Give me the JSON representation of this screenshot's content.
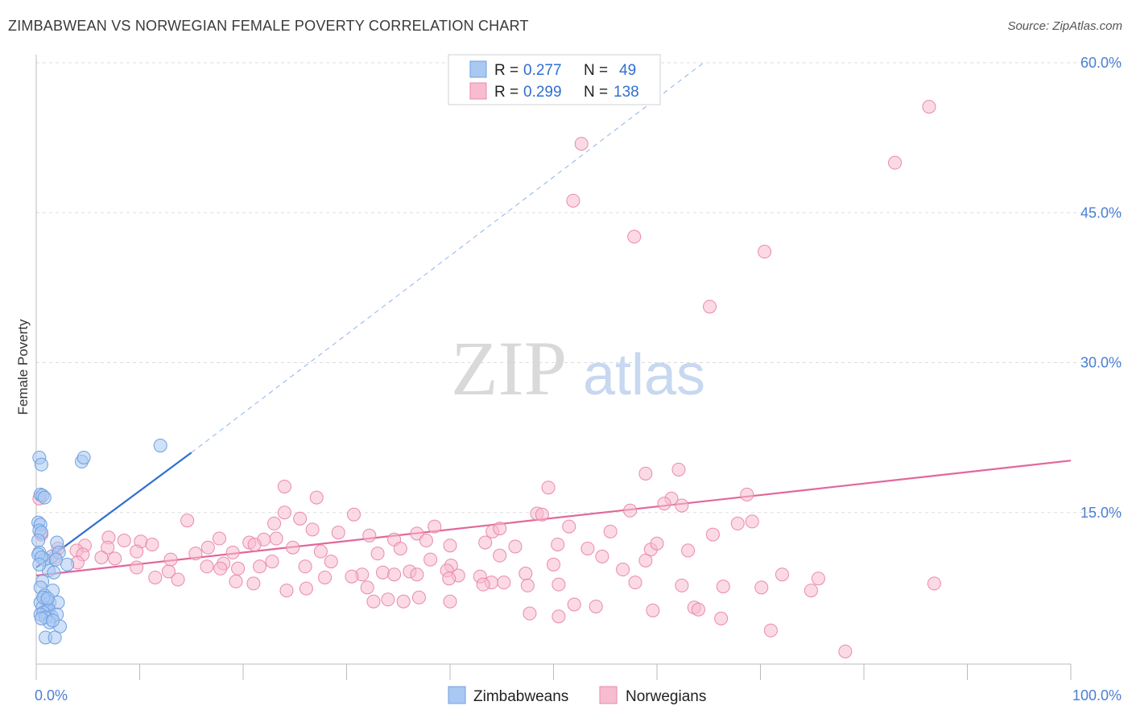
{
  "header": {
    "title": "ZIMBABWEAN VS NORWEGIAN FEMALE POVERTY CORRELATION CHART",
    "source": "Source: ZipAtlas.com"
  },
  "watermark": {
    "zip": "ZIP",
    "atlas": "atlas"
  },
  "legend": {
    "rows": [
      {
        "r_label": "R =",
        "r_value": "0.277",
        "n_label": "N =",
        "n_value": "49"
      },
      {
        "r_label": "R =",
        "r_value": "0.299",
        "n_label": "N =",
        "n_value": "138"
      }
    ]
  },
  "bottom_legend": {
    "items": [
      "Zimbabweans",
      "Norwegians"
    ]
  },
  "colors": {
    "blue_fill": "#a9c8f2",
    "blue_stroke": "#6f9fe0",
    "blue_line": "#2e6fd3",
    "pink_fill": "#f7bcd0",
    "pink_stroke": "#e98aab",
    "pink_line": "#e2679a",
    "tick_text": "#4a7fd4",
    "grid": "#dddddd"
  },
  "chart_data": {
    "type": "scatter",
    "title": "ZIMBABWEAN VS NORWEGIAN FEMALE POVERTY CORRELATION CHART",
    "xlabel": "",
    "ylabel": "Female Poverty",
    "xlim": [
      0,
      100
    ],
    "ylim": [
      0,
      60
    ],
    "x_tick_labels": [
      "0.0%",
      "100.0%"
    ],
    "y_ticks": [
      15,
      30,
      45,
      60
    ],
    "y_tick_labels": [
      "15.0%",
      "30.0%",
      "45.0%",
      "60.0%"
    ],
    "grid": true,
    "legend_position": "top-center",
    "series": [
      {
        "name": "Zimbabweans",
        "r": 0.277,
        "n": 49,
        "trend": {
          "x": [
            0,
            15
          ],
          "y": [
            9.5,
            21.0
          ],
          "dashed_to": [
            64.5,
            60.0
          ]
        },
        "points": [
          [
            0.3,
            20.5
          ],
          [
            0.5,
            19.8
          ],
          [
            4.4,
            20.1
          ],
          [
            4.6,
            20.5
          ],
          [
            12.0,
            21.7
          ],
          [
            0.4,
            16.8
          ],
          [
            0.6,
            16.7
          ],
          [
            0.8,
            16.5
          ],
          [
            0.2,
            14.0
          ],
          [
            0.4,
            13.8
          ],
          [
            0.3,
            13.2
          ],
          [
            0.5,
            13.0
          ],
          [
            0.2,
            12.2
          ],
          [
            2.0,
            12.0
          ],
          [
            0.3,
            11.0
          ],
          [
            1.5,
            10.6
          ],
          [
            2.2,
            11.0
          ],
          [
            0.8,
            10.3
          ],
          [
            3.0,
            9.8
          ],
          [
            1.2,
            9.2
          ],
          [
            1.7,
            9.0
          ],
          [
            0.6,
            8.1
          ],
          [
            1.6,
            7.2
          ],
          [
            0.4,
            7.5
          ],
          [
            0.8,
            6.7
          ],
          [
            1.0,
            6.2
          ],
          [
            0.4,
            6.0
          ],
          [
            1.3,
            6.0
          ],
          [
            2.1,
            6.0
          ],
          [
            0.6,
            5.5
          ],
          [
            1.0,
            5.1
          ],
          [
            1.2,
            5.3
          ],
          [
            0.7,
            5.0
          ],
          [
            0.4,
            4.8
          ],
          [
            1.5,
            4.6
          ],
          [
            2.0,
            4.8
          ],
          [
            0.9,
            4.5
          ],
          [
            1.3,
            4.0
          ],
          [
            2.3,
            3.6
          ],
          [
            0.9,
            2.5
          ],
          [
            1.8,
            2.5
          ],
          [
            0.2,
            10.8
          ],
          [
            0.5,
            10.5
          ],
          [
            0.3,
            9.8
          ],
          [
            1.9,
            10.3
          ],
          [
            0.7,
            6.5
          ],
          [
            1.1,
            6.4
          ],
          [
            0.5,
            4.4
          ],
          [
            1.6,
            4.2
          ]
        ]
      },
      {
        "name": "Norwegians",
        "r": 0.299,
        "n": 138,
        "trend": {
          "x": [
            0,
            100
          ],
          "y": [
            8.7,
            20.2
          ]
        },
        "points": [
          [
            86.3,
            55.6
          ],
          [
            83.0,
            50.0
          ],
          [
            52.7,
            51.9
          ],
          [
            51.9,
            46.2
          ],
          [
            57.8,
            42.6
          ],
          [
            70.4,
            41.1
          ],
          [
            65.1,
            35.6
          ],
          [
            0.3,
            16.4
          ],
          [
            0.5,
            12.8
          ],
          [
            62.1,
            19.3
          ],
          [
            58.9,
            18.9
          ],
          [
            24.0,
            17.6
          ],
          [
            49.5,
            17.5
          ],
          [
            68.7,
            16.8
          ],
          [
            27.1,
            16.5
          ],
          [
            61.4,
            16.4
          ],
          [
            60.7,
            15.9
          ],
          [
            62.4,
            15.7
          ],
          [
            57.4,
            15.2
          ],
          [
            24.0,
            15.0
          ],
          [
            48.4,
            14.9
          ],
          [
            48.9,
            14.8
          ],
          [
            25.5,
            14.4
          ],
          [
            14.6,
            14.2
          ],
          [
            69.2,
            14.1
          ],
          [
            67.8,
            13.9
          ],
          [
            23.0,
            13.9
          ],
          [
            38.5,
            13.6
          ],
          [
            51.5,
            13.6
          ],
          [
            26.7,
            13.3
          ],
          [
            55.5,
            13.1
          ],
          [
            44.1,
            13.1
          ],
          [
            29.2,
            13.0
          ],
          [
            36.8,
            12.9
          ],
          [
            32.2,
            12.7
          ],
          [
            7.0,
            12.5
          ],
          [
            23.2,
            12.4
          ],
          [
            17.7,
            12.4
          ],
          [
            22.0,
            12.3
          ],
          [
            34.6,
            12.3
          ],
          [
            8.5,
            12.2
          ],
          [
            37.7,
            12.2
          ],
          [
            10.1,
            12.1
          ],
          [
            20.6,
            12.0
          ],
          [
            43.4,
            12.0
          ],
          [
            50.4,
            11.8
          ],
          [
            21.1,
            11.8
          ],
          [
            11.2,
            11.8
          ],
          [
            4.7,
            11.7
          ],
          [
            40.0,
            11.7
          ],
          [
            46.3,
            11.6
          ],
          [
            16.6,
            11.5
          ],
          [
            6.9,
            11.5
          ],
          [
            24.8,
            11.5
          ],
          [
            2.1,
            11.4
          ],
          [
            35.2,
            11.4
          ],
          [
            59.4,
            11.3
          ],
          [
            63.0,
            11.2
          ],
          [
            3.9,
            11.2
          ],
          [
            27.5,
            11.1
          ],
          [
            9.7,
            11.1
          ],
          [
            19.0,
            11.0
          ],
          [
            33.0,
            10.9
          ],
          [
            4.5,
            10.8
          ],
          [
            44.8,
            10.7
          ],
          [
            1.8,
            10.5
          ],
          [
            6.3,
            10.5
          ],
          [
            7.6,
            10.4
          ],
          [
            38.1,
            10.3
          ],
          [
            13.0,
            10.3
          ],
          [
            22.8,
            10.1
          ],
          [
            28.5,
            10.1
          ],
          [
            4.0,
            10.0
          ],
          [
            18.1,
            9.9
          ],
          [
            50.0,
            9.8
          ],
          [
            40.1,
            9.7
          ],
          [
            21.6,
            9.6
          ],
          [
            26.0,
            9.6
          ],
          [
            17.8,
            9.4
          ],
          [
            19.5,
            9.4
          ],
          [
            39.7,
            9.2
          ],
          [
            36.1,
            9.1
          ],
          [
            33.5,
            9.0
          ],
          [
            47.3,
            8.9
          ],
          [
            34.6,
            8.8
          ],
          [
            36.8,
            8.8
          ],
          [
            31.5,
            8.8
          ],
          [
            40.8,
            8.7
          ],
          [
            30.5,
            8.6
          ],
          [
            42.9,
            8.6
          ],
          [
            11.5,
            8.5
          ],
          [
            27.9,
            8.5
          ],
          [
            39.9,
            8.4
          ],
          [
            13.7,
            8.3
          ],
          [
            19.3,
            8.1
          ],
          [
            44.0,
            8.0
          ],
          [
            57.9,
            8.0
          ],
          [
            45.2,
            8.0
          ],
          [
            21.0,
            7.9
          ],
          [
            43.2,
            7.8
          ],
          [
            50.5,
            7.8
          ],
          [
            47.5,
            7.7
          ],
          [
            62.4,
            7.7
          ],
          [
            66.4,
            7.6
          ],
          [
            70.1,
            7.5
          ],
          [
            74.9,
            7.2
          ],
          [
            24.2,
            7.2
          ],
          [
            32.0,
            7.5
          ],
          [
            26.1,
            7.4
          ],
          [
            37.0,
            6.5
          ],
          [
            34.0,
            6.3
          ],
          [
            35.5,
            6.1
          ],
          [
            32.6,
            6.1
          ],
          [
            40.0,
            6.1
          ],
          [
            52.0,
            5.8
          ],
          [
            54.1,
            5.6
          ],
          [
            63.6,
            5.5
          ],
          [
            64.0,
            5.3
          ],
          [
            59.6,
            5.2
          ],
          [
            47.7,
            4.9
          ],
          [
            50.5,
            4.6
          ],
          [
            66.2,
            4.4
          ],
          [
            71.0,
            3.2
          ],
          [
            78.2,
            1.1
          ],
          [
            86.8,
            7.9
          ],
          [
            72.1,
            8.8
          ],
          [
            75.6,
            8.4
          ],
          [
            56.7,
            9.3
          ],
          [
            58.9,
            10.2
          ],
          [
            53.3,
            11.4
          ],
          [
            60.0,
            11.9
          ],
          [
            65.4,
            12.8
          ],
          [
            54.7,
            10.6
          ],
          [
            30.7,
            14.8
          ],
          [
            44.8,
            13.4
          ],
          [
            9.7,
            9.5
          ],
          [
            15.4,
            10.9
          ],
          [
            12.8,
            9.1
          ],
          [
            16.5,
            9.6
          ]
        ]
      }
    ]
  }
}
